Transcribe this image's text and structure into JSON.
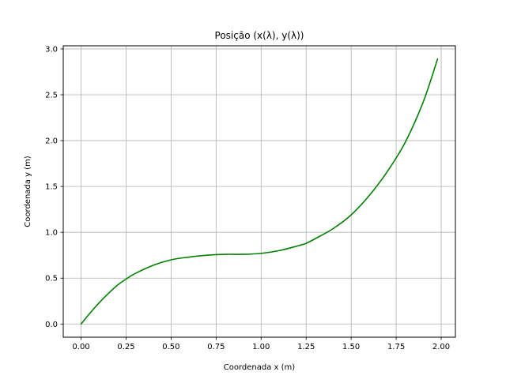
{
  "chart_data": {
    "type": "line",
    "title": "Posição (x(λ), y(λ))",
    "xlabel": "Coordenada x (m)",
    "ylabel": "Coordenada y (m)",
    "xlim": [
      -0.099,
      2.079
    ],
    "ylim": [
      -0.144,
      3.034
    ],
    "xticks": [
      0.0,
      0.25,
      0.5,
      0.75,
      1.0,
      1.25,
      1.5,
      1.75,
      2.0
    ],
    "xtick_labels": [
      "0.00",
      "0.25",
      "0.50",
      "0.75",
      "1.00",
      "1.25",
      "1.50",
      "1.75",
      "2.00"
    ],
    "yticks": [
      0.0,
      0.5,
      1.0,
      1.5,
      2.0,
      2.5,
      3.0
    ],
    "ytick_labels": [
      "0.0",
      "0.5",
      "1.0",
      "1.5",
      "2.0",
      "2.5",
      "3.0"
    ],
    "grid": true,
    "series": [
      {
        "color": "#008000",
        "x": [
          0.0,
          0.05,
          0.1,
          0.15,
          0.2,
          0.25,
          0.3,
          0.4,
          0.5,
          0.6,
          0.7,
          0.8,
          0.9,
          1.0,
          1.1,
          1.2,
          1.25,
          1.3,
          1.4,
          1.5,
          1.6,
          1.7,
          1.8,
          1.9,
          1.98
        ],
        "y": [
          0.0,
          0.12,
          0.23,
          0.33,
          0.42,
          0.49,
          0.55,
          0.64,
          0.7,
          0.73,
          0.75,
          0.76,
          0.76,
          0.77,
          0.8,
          0.85,
          0.88,
          0.93,
          1.04,
          1.19,
          1.4,
          1.66,
          1.98,
          2.42,
          2.89
        ]
      }
    ]
  }
}
